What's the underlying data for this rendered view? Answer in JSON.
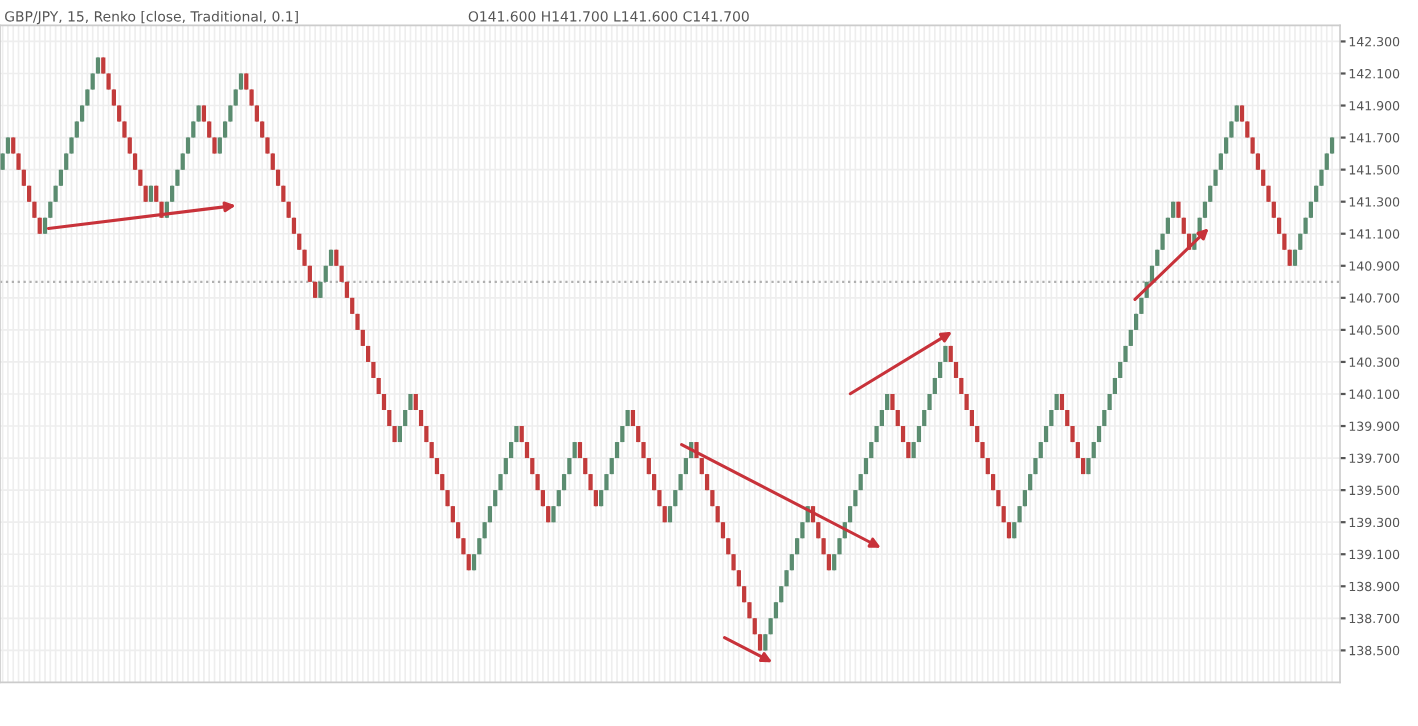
{
  "chart_data": {
    "type": "candlestick",
    "title": "GBP/JPY, 15, Renko [close, Traditional, 0.1]",
    "subtitle": "O141.600 H141.700 L141.600 C141.700",
    "categories": [
      null,
      null,
      null,
      null,
      null,
      null,
      null,
      null,
      null,
      null,
      null,
      null,
      null,
      null,
      null,
      null,
      null,
      null,
      null,
      null,
      null,
      null,
      null,
      null,
      null,
      null,
      null,
      null,
      null,
      null,
      null,
      null,
      null,
      null,
      null,
      null,
      null,
      null,
      null,
      null,
      null,
      null,
      null,
      null,
      null,
      null,
      null,
      null,
      null,
      null,
      null,
      null,
      null,
      null,
      null,
      null,
      null,
      null,
      null,
      null,
      null,
      null,
      null,
      null,
      null,
      null,
      null,
      null,
      null,
      null,
      null,
      null,
      null,
      null,
      null,
      null,
      null,
      null,
      null,
      null,
      null,
      null,
      null,
      null,
      null,
      null,
      null,
      null,
      null,
      null,
      null,
      null,
      null,
      null,
      null,
      null,
      null,
      null,
      null,
      null,
      null,
      null,
      null,
      null,
      null,
      null,
      null,
      null,
      null,
      null,
      null,
      null,
      null,
      null,
      null,
      null,
      null,
      null,
      null,
      null,
      null,
      null,
      null,
      null,
      null,
      null,
      null,
      null,
      null,
      null,
      null,
      null,
      null,
      null,
      null,
      null,
      null,
      null,
      null,
      null,
      null,
      null,
      null,
      null,
      null,
      null,
      null,
      null,
      null,
      null,
      null,
      null,
      null,
      null,
      null,
      null,
      null,
      null,
      null,
      null,
      null,
      null,
      null,
      null,
      null,
      null,
      null,
      null,
      null,
      null,
      null,
      null,
      null,
      null,
      null,
      null,
      null,
      null,
      null,
      null,
      null,
      null,
      null,
      null,
      null,
      null,
      null,
      null,
      null,
      null,
      null,
      null,
      null,
      null,
      null,
      null,
      null,
      null,
      null,
      null,
      null,
      null,
      null,
      null,
      null,
      null,
      null,
      null,
      null,
      null,
      null,
      null,
      null,
      null,
      null,
      null,
      null,
      null,
      null,
      null,
      null,
      null,
      null,
      null,
      null,
      null,
      null,
      null,
      null,
      null,
      null,
      null,
      null,
      null,
      null,
      null,
      null,
      null,
      null,
      null,
      null,
      null,
      null,
      null,
      null,
      null,
      null,
      null,
      null,
      null,
      null,
      null
    ],
    "ohlc": [
      [
        141.5,
        141.6,
        141.5,
        141.6
      ],
      [
        141.6,
        141.7,
        141.6,
        141.7
      ],
      [
        141.7,
        141.7,
        141.6,
        141.6
      ],
      [
        141.6,
        141.6,
        141.5,
        141.5
      ],
      [
        141.5,
        141.5,
        141.4,
        141.4
      ],
      [
        141.4,
        141.4,
        141.3,
        141.3
      ],
      [
        141.3,
        141.3,
        141.2,
        141.2
      ],
      [
        141.2,
        141.2,
        141.1,
        141.1
      ],
      [
        141.1,
        141.2,
        141.1,
        141.2
      ],
      [
        141.2,
        141.3,
        141.2,
        141.3
      ],
      [
        141.3,
        141.4,
        141.3,
        141.4
      ],
      [
        141.4,
        141.5,
        141.4,
        141.5
      ],
      [
        141.5,
        141.6,
        141.5,
        141.6
      ],
      [
        141.6,
        141.7,
        141.6,
        141.7
      ],
      [
        141.7,
        141.8,
        141.7,
        141.8
      ],
      [
        141.8,
        141.9,
        141.8,
        141.9
      ],
      [
        141.9,
        142.0,
        141.9,
        142.0
      ],
      [
        142.0,
        142.1,
        142.0,
        142.1
      ],
      [
        142.1,
        142.2,
        142.1,
        142.2
      ],
      [
        142.2,
        142.2,
        142.1,
        142.1
      ],
      [
        142.1,
        142.1,
        142.0,
        142.0
      ],
      [
        142.0,
        142.0,
        141.9,
        141.9
      ],
      [
        141.9,
        141.9,
        141.8,
        141.8
      ],
      [
        141.8,
        141.8,
        141.7,
        141.7
      ],
      [
        141.7,
        141.7,
        141.6,
        141.6
      ],
      [
        141.6,
        141.6,
        141.5,
        141.5
      ],
      [
        141.5,
        141.5,
        141.4,
        141.4
      ],
      [
        141.4,
        141.4,
        141.3,
        141.3
      ],
      [
        141.3,
        141.4,
        141.3,
        141.4
      ],
      [
        141.4,
        141.4,
        141.3,
        141.3
      ],
      [
        141.3,
        141.3,
        141.2,
        141.2
      ],
      [
        141.2,
        141.3,
        141.2,
        141.3
      ],
      [
        141.3,
        141.4,
        141.3,
        141.4
      ],
      [
        141.4,
        141.5,
        141.4,
        141.5
      ],
      [
        141.5,
        141.6,
        141.5,
        141.6
      ],
      [
        141.6,
        141.7,
        141.6,
        141.7
      ],
      [
        141.7,
        141.8,
        141.7,
        141.8
      ],
      [
        141.8,
        141.9,
        141.8,
        141.9
      ],
      [
        141.9,
        141.9,
        141.8,
        141.8
      ],
      [
        141.8,
        141.8,
        141.7,
        141.7
      ],
      [
        141.7,
        141.7,
        141.6,
        141.6
      ],
      [
        141.6,
        141.7,
        141.6,
        141.7
      ],
      [
        141.7,
        141.8,
        141.7,
        141.8
      ],
      [
        141.8,
        141.9,
        141.8,
        141.9
      ],
      [
        141.9,
        142.0,
        141.9,
        142.0
      ],
      [
        142.0,
        142.1,
        142.0,
        142.1
      ],
      [
        142.1,
        142.1,
        142.0,
        142.0
      ],
      [
        142.0,
        142.0,
        141.9,
        141.9
      ],
      [
        141.9,
        141.9,
        141.8,
        141.8
      ],
      [
        141.8,
        141.8,
        141.7,
        141.7
      ],
      [
        141.7,
        141.7,
        141.6,
        141.6
      ],
      [
        141.6,
        141.6,
        141.5,
        141.5
      ],
      [
        141.5,
        141.5,
        141.4,
        141.4
      ],
      [
        141.4,
        141.4,
        141.3,
        141.3
      ],
      [
        141.3,
        141.3,
        141.2,
        141.2
      ],
      [
        141.2,
        141.2,
        141.1,
        141.1
      ],
      [
        141.1,
        141.1,
        141.0,
        141.0
      ],
      [
        141.0,
        141.0,
        140.9,
        140.9
      ],
      [
        140.9,
        140.9,
        140.8,
        140.8
      ],
      [
        140.8,
        140.8,
        140.7,
        140.7
      ],
      [
        140.7,
        140.8,
        140.7,
        140.8
      ],
      [
        140.8,
        140.9,
        140.8,
        140.9
      ],
      [
        140.9,
        141.0,
        140.9,
        141.0
      ],
      [
        141.0,
        141.0,
        140.9,
        140.9
      ],
      [
        140.9,
        140.9,
        140.8,
        140.8
      ],
      [
        140.8,
        140.8,
        140.7,
        140.7
      ],
      [
        140.7,
        140.7,
        140.6,
        140.6
      ],
      [
        140.6,
        140.6,
        140.5,
        140.5
      ],
      [
        140.5,
        140.5,
        140.4,
        140.4
      ],
      [
        140.4,
        140.4,
        140.3,
        140.3
      ],
      [
        140.3,
        140.3,
        140.2,
        140.2
      ],
      [
        140.2,
        140.2,
        140.1,
        140.1
      ],
      [
        140.1,
        140.1,
        140.0,
        140.0
      ],
      [
        140.0,
        140.0,
        139.9,
        139.9
      ],
      [
        139.9,
        139.9,
        139.8,
        139.8
      ],
      [
        139.8,
        139.9,
        139.8,
        139.9
      ],
      [
        139.9,
        140.0,
        139.9,
        140.0
      ],
      [
        140.0,
        140.1,
        140.0,
        140.1
      ],
      [
        140.1,
        140.1,
        140.0,
        140.0
      ],
      [
        140.0,
        140.0,
        139.9,
        139.9
      ],
      [
        139.9,
        139.9,
        139.8,
        139.8
      ],
      [
        139.8,
        139.8,
        139.7,
        139.7
      ],
      [
        139.7,
        139.7,
        139.6,
        139.6
      ],
      [
        139.6,
        139.6,
        139.5,
        139.5
      ],
      [
        139.5,
        139.5,
        139.4,
        139.4
      ],
      [
        139.4,
        139.4,
        139.3,
        139.3
      ],
      [
        139.3,
        139.3,
        139.2,
        139.2
      ],
      [
        139.2,
        139.2,
        139.1,
        139.1
      ],
      [
        139.1,
        139.1,
        139.0,
        139.0
      ],
      [
        139.0,
        139.1,
        139.0,
        139.1
      ],
      [
        139.1,
        139.2,
        139.1,
        139.2
      ],
      [
        139.2,
        139.3,
        139.2,
        139.3
      ],
      [
        139.3,
        139.4,
        139.3,
        139.4
      ],
      [
        139.4,
        139.5,
        139.4,
        139.5
      ],
      [
        139.5,
        139.6,
        139.5,
        139.6
      ],
      [
        139.6,
        139.7,
        139.6,
        139.7
      ],
      [
        139.7,
        139.8,
        139.7,
        139.8
      ],
      [
        139.8,
        139.9,
        139.8,
        139.9
      ],
      [
        139.9,
        139.9,
        139.8,
        139.8
      ],
      [
        139.8,
        139.8,
        139.7,
        139.7
      ],
      [
        139.7,
        139.7,
        139.6,
        139.6
      ],
      [
        139.6,
        139.6,
        139.5,
        139.5
      ],
      [
        139.5,
        139.5,
        139.4,
        139.4
      ],
      [
        139.4,
        139.4,
        139.3,
        139.3
      ],
      [
        139.3,
        139.4,
        139.3,
        139.4
      ],
      [
        139.4,
        139.5,
        139.4,
        139.5
      ],
      [
        139.5,
        139.6,
        139.5,
        139.6
      ],
      [
        139.6,
        139.7,
        139.6,
        139.7
      ],
      [
        139.7,
        139.8,
        139.7,
        139.8
      ],
      [
        139.8,
        139.8,
        139.7,
        139.7
      ],
      [
        139.7,
        139.7,
        139.6,
        139.6
      ],
      [
        139.6,
        139.6,
        139.5,
        139.5
      ],
      [
        139.5,
        139.5,
        139.4,
        139.4
      ],
      [
        139.4,
        139.5,
        139.4,
        139.5
      ],
      [
        139.5,
        139.6,
        139.5,
        139.6
      ],
      [
        139.6,
        139.7,
        139.6,
        139.7
      ],
      [
        139.7,
        139.8,
        139.7,
        139.8
      ],
      [
        139.8,
        139.9,
        139.8,
        139.9
      ],
      [
        139.9,
        140.0,
        139.9,
        140.0
      ],
      [
        140.0,
        140.0,
        139.9,
        139.9
      ],
      [
        139.9,
        139.9,
        139.8,
        139.8
      ],
      [
        139.8,
        139.8,
        139.7,
        139.7
      ],
      [
        139.7,
        139.7,
        139.6,
        139.6
      ],
      [
        139.6,
        139.6,
        139.5,
        139.5
      ],
      [
        139.5,
        139.5,
        139.4,
        139.4
      ],
      [
        139.4,
        139.4,
        139.3,
        139.3
      ],
      [
        139.3,
        139.4,
        139.3,
        139.4
      ],
      [
        139.4,
        139.5,
        139.4,
        139.5
      ],
      [
        139.5,
        139.6,
        139.5,
        139.6
      ],
      [
        139.6,
        139.7,
        139.6,
        139.7
      ],
      [
        139.7,
        139.8,
        139.7,
        139.8
      ],
      [
        139.8,
        139.8,
        139.7,
        139.7
      ],
      [
        139.7,
        139.7,
        139.6,
        139.6
      ],
      [
        139.6,
        139.6,
        139.5,
        139.5
      ],
      [
        139.5,
        139.5,
        139.4,
        139.4
      ],
      [
        139.4,
        139.4,
        139.3,
        139.3
      ],
      [
        139.3,
        139.3,
        139.2,
        139.2
      ],
      [
        139.2,
        139.2,
        139.1,
        139.1
      ],
      [
        139.1,
        139.1,
        139.0,
        139.0
      ],
      [
        139.0,
        139.0,
        138.9,
        138.9
      ],
      [
        138.9,
        138.9,
        138.8,
        138.8
      ],
      [
        138.8,
        138.8,
        138.7,
        138.7
      ],
      [
        138.7,
        138.7,
        138.6,
        138.6
      ],
      [
        138.6,
        138.6,
        138.5,
        138.5
      ],
      [
        138.5,
        138.6,
        138.5,
        138.6
      ],
      [
        138.6,
        138.7,
        138.6,
        138.7
      ],
      [
        138.7,
        138.8,
        138.7,
        138.8
      ],
      [
        138.8,
        138.9,
        138.8,
        138.9
      ],
      [
        138.9,
        139.0,
        138.9,
        139.0
      ],
      [
        139.0,
        139.1,
        139.0,
        139.1
      ],
      [
        139.1,
        139.2,
        139.1,
        139.2
      ],
      [
        139.2,
        139.3,
        139.2,
        139.3
      ],
      [
        139.3,
        139.4,
        139.3,
        139.4
      ],
      [
        139.4,
        139.4,
        139.3,
        139.3
      ],
      [
        139.3,
        139.3,
        139.2,
        139.2
      ],
      [
        139.2,
        139.2,
        139.1,
        139.1
      ],
      [
        139.1,
        139.1,
        139.0,
        139.0
      ],
      [
        139.0,
        139.1,
        139.0,
        139.1
      ],
      [
        139.1,
        139.2,
        139.1,
        139.2
      ],
      [
        139.2,
        139.3,
        139.2,
        139.3
      ],
      [
        139.3,
        139.4,
        139.3,
        139.4
      ],
      [
        139.4,
        139.5,
        139.4,
        139.5
      ],
      [
        139.5,
        139.6,
        139.5,
        139.6
      ],
      [
        139.6,
        139.7,
        139.6,
        139.7
      ],
      [
        139.7,
        139.8,
        139.7,
        139.8
      ],
      [
        139.8,
        139.9,
        139.8,
        139.9
      ],
      [
        139.9,
        140.0,
        139.9,
        140.0
      ],
      [
        140.0,
        140.1,
        140.0,
        140.1
      ],
      [
        140.1,
        140.1,
        140.0,
        140.0
      ],
      [
        140.0,
        140.0,
        139.9,
        139.9
      ],
      [
        139.9,
        139.9,
        139.8,
        139.8
      ],
      [
        139.8,
        139.8,
        139.7,
        139.7
      ],
      [
        139.7,
        139.8,
        139.7,
        139.8
      ],
      [
        139.8,
        139.9,
        139.8,
        139.9
      ],
      [
        139.9,
        140.0,
        139.9,
        140.0
      ],
      [
        140.0,
        140.1,
        140.0,
        140.1
      ],
      [
        140.1,
        140.2,
        140.1,
        140.2
      ],
      [
        140.2,
        140.3,
        140.2,
        140.3
      ],
      [
        140.3,
        140.4,
        140.3,
        140.4
      ],
      [
        140.4,
        140.4,
        140.3,
        140.3
      ],
      [
        140.3,
        140.3,
        140.2,
        140.2
      ],
      [
        140.2,
        140.2,
        140.1,
        140.1
      ],
      [
        140.1,
        140.1,
        140.0,
        140.0
      ],
      [
        140.0,
        140.0,
        139.9,
        139.9
      ],
      [
        139.9,
        139.9,
        139.8,
        139.8
      ],
      [
        139.8,
        139.8,
        139.7,
        139.7
      ],
      [
        139.7,
        139.7,
        139.6,
        139.6
      ],
      [
        139.6,
        139.6,
        139.5,
        139.5
      ],
      [
        139.5,
        139.5,
        139.4,
        139.4
      ],
      [
        139.4,
        139.4,
        139.3,
        139.3
      ],
      [
        139.3,
        139.3,
        139.2,
        139.2
      ],
      [
        139.2,
        139.3,
        139.2,
        139.3
      ],
      [
        139.3,
        139.4,
        139.3,
        139.4
      ],
      [
        139.4,
        139.5,
        139.4,
        139.5
      ],
      [
        139.5,
        139.6,
        139.5,
        139.6
      ],
      [
        139.6,
        139.7,
        139.6,
        139.7
      ],
      [
        139.7,
        139.8,
        139.7,
        139.8
      ],
      [
        139.8,
        139.9,
        139.8,
        139.9
      ],
      [
        139.9,
        140.0,
        139.9,
        140.0
      ],
      [
        140.0,
        140.1,
        140.0,
        140.1
      ],
      [
        140.1,
        140.1,
        140.0,
        140.0
      ],
      [
        140.0,
        140.0,
        139.9,
        139.9
      ],
      [
        139.9,
        139.9,
        139.8,
        139.8
      ],
      [
        139.8,
        139.8,
        139.7,
        139.7
      ],
      [
        139.7,
        139.7,
        139.6,
        139.6
      ],
      [
        139.6,
        139.7,
        139.6,
        139.7
      ],
      [
        139.7,
        139.8,
        139.7,
        139.8
      ],
      [
        139.8,
        139.9,
        139.8,
        139.9
      ],
      [
        139.9,
        140.0,
        139.9,
        140.0
      ],
      [
        140.0,
        140.1,
        140.0,
        140.1
      ],
      [
        140.1,
        140.2,
        140.1,
        140.2
      ],
      [
        140.2,
        140.3,
        140.2,
        140.3
      ],
      [
        140.3,
        140.4,
        140.3,
        140.4
      ],
      [
        140.4,
        140.5,
        140.4,
        140.5
      ],
      [
        140.5,
        140.6,
        140.5,
        140.6
      ],
      [
        140.6,
        140.7,
        140.6,
        140.7
      ],
      [
        140.7,
        140.8,
        140.7,
        140.8
      ],
      [
        140.8,
        140.9,
        140.8,
        140.9
      ],
      [
        140.9,
        141.0,
        140.9,
        141.0
      ],
      [
        141.0,
        141.1,
        141.0,
        141.1
      ],
      [
        141.1,
        141.2,
        141.1,
        141.2
      ],
      [
        141.2,
        141.3,
        141.2,
        141.3
      ],
      [
        141.3,
        141.3,
        141.2,
        141.2
      ],
      [
        141.2,
        141.2,
        141.1,
        141.1
      ],
      [
        141.1,
        141.1,
        141.0,
        141.0
      ],
      [
        141.0,
        141.1,
        141.0,
        141.1
      ],
      [
        141.1,
        141.2,
        141.1,
        141.2
      ],
      [
        141.2,
        141.3,
        141.2,
        141.3
      ],
      [
        141.3,
        141.4,
        141.3,
        141.4
      ],
      [
        141.4,
        141.5,
        141.4,
        141.5
      ],
      [
        141.5,
        141.6,
        141.5,
        141.6
      ],
      [
        141.6,
        141.7,
        141.6,
        141.7
      ],
      [
        141.7,
        141.8,
        141.7,
        141.8
      ],
      [
        141.8,
        141.9,
        141.8,
        141.9
      ],
      [
        141.9,
        141.9,
        141.8,
        141.8
      ],
      [
        141.8,
        141.8,
        141.7,
        141.7
      ],
      [
        141.7,
        141.7,
        141.6,
        141.6
      ],
      [
        141.6,
        141.6,
        141.5,
        141.5
      ],
      [
        141.5,
        141.5,
        141.4,
        141.4
      ],
      [
        141.4,
        141.4,
        141.3,
        141.3
      ],
      [
        141.3,
        141.3,
        141.2,
        141.2
      ],
      [
        141.2,
        141.2,
        141.1,
        141.1
      ],
      [
        141.1,
        141.1,
        141.0,
        141.0
      ],
      [
        141.0,
        141.0,
        140.9,
        140.9
      ],
      [
        140.9,
        141.0,
        140.9,
        141.0
      ],
      [
        141.0,
        141.1,
        141.0,
        141.1
      ],
      [
        141.1,
        141.2,
        141.1,
        141.2
      ],
      [
        141.2,
        141.3,
        141.2,
        141.3
      ],
      [
        141.3,
        141.4,
        141.3,
        141.4
      ],
      [
        141.4,
        141.5,
        141.4,
        141.5
      ],
      [
        141.5,
        141.6,
        141.5,
        141.6
      ],
      [
        141.6,
        141.7,
        141.6,
        141.7
      ]
    ],
    "colors": [
      "#5b8c70",
      "#5b8c70",
      "#c23b3b",
      "#c23b3b",
      "#c23b3b",
      "#c23b3b",
      "#c23b3b",
      "#c23b3b",
      "#5b8c70",
      "#5b8c70",
      "#5b8c70",
      "#5b8c70",
      "#5b8c70",
      "#5b8c70",
      "#5b8c70",
      "#5b8c70",
      "#5b8c70",
      "#5b8c70",
      "#5b8c70",
      "#c23b3b",
      "#c23b3b",
      "#c23b3b",
      "#c23b3b",
      "#c23b3b",
      "#c23b3b",
      "#c23b3b",
      "#c23b3b",
      "#c23b3b",
      "#5b8c70",
      "#c23b3b",
      "#c23b3b",
      "#5b8c70",
      "#5b8c70",
      "#5b8c70",
      "#5b8c70",
      "#5b8c70",
      "#5b8c70",
      "#5b8c70",
      "#c23b3b",
      "#c23b3b",
      "#c23b3b",
      "#5b8c70",
      "#5b8c70",
      "#5b8c70",
      "#5b8c70",
      "#5b8c70",
      "#c23b3b",
      "#c23b3b",
      "#c23b3b",
      "#c23b3b",
      "#c23b3b",
      "#c23b3b",
      "#c23b3b",
      "#c23b3b",
      "#c23b3b",
      "#c23b3b",
      "#c23b3b",
      "#c23b3b",
      "#c23b3b",
      "#c23b3b",
      "#5b8c70",
      "#5b8c70",
      "#5b8c70",
      "#c23b3b",
      "#c23b3b",
      "#c23b3b",
      "#c23b3b",
      "#c23b3b",
      "#c23b3b",
      "#c23b3b",
      "#c23b3b",
      "#c23b3b",
      "#c23b3b",
      "#c23b3b",
      "#c23b3b",
      "#5b8c70",
      "#5b8c70",
      "#5b8c70",
      "#c23b3b",
      "#c23b3b",
      "#c23b3b",
      "#c23b3b",
      "#c23b3b",
      "#c23b3b",
      "#c23b3b",
      "#c23b3b",
      "#c23b3b",
      "#c23b3b",
      "#c23b3b",
      "#5b8c70",
      "#5b8c70",
      "#5b8c70",
      "#5b8c70",
      "#5b8c70",
      "#5b8c70",
      "#5b8c70",
      "#5b8c70",
      "#5b8c70",
      "#c23b3b",
      "#c23b3b",
      "#c23b3b",
      "#c23b3b",
      "#c23b3b",
      "#c23b3b",
      "#5b8c70",
      "#5b8c70",
      "#5b8c70",
      "#5b8c70",
      "#5b8c70",
      "#c23b3b",
      "#c23b3b",
      "#c23b3b",
      "#c23b3b",
      "#5b8c70",
      "#5b8c70",
      "#5b8c70",
      "#5b8c70",
      "#5b8c70",
      "#5b8c70",
      "#c23b3b",
      "#c23b3b",
      "#c23b3b",
      "#c23b3b",
      "#c23b3b",
      "#c23b3b",
      "#c23b3b",
      "#5b8c70",
      "#5b8c70",
      "#5b8c70",
      "#5b8c70",
      "#5b8c70",
      "#c23b3b",
      "#c23b3b",
      "#c23b3b",
      "#c23b3b",
      "#c23b3b",
      "#c23b3b",
      "#c23b3b",
      "#c23b3b",
      "#c23b3b",
      "#c23b3b",
      "#c23b3b",
      "#c23b3b",
      "#c23b3b",
      "#5b8c70",
      "#5b8c70",
      "#5b8c70",
      "#5b8c70",
      "#5b8c70",
      "#5b8c70",
      "#5b8c70",
      "#5b8c70",
      "#5b8c70",
      "#c23b3b",
      "#c23b3b",
      "#c23b3b",
      "#c23b3b",
      "#5b8c70",
      "#5b8c70",
      "#5b8c70",
      "#5b8c70",
      "#5b8c70",
      "#5b8c70",
      "#5b8c70",
      "#5b8c70",
      "#5b8c70",
      "#5b8c70",
      "#5b8c70",
      "#c23b3b",
      "#c23b3b",
      "#c23b3b",
      "#c23b3b",
      "#5b8c70",
      "#5b8c70",
      "#5b8c70",
      "#5b8c70",
      "#5b8c70",
      "#5b8c70",
      "#5b8c70",
      "#c23b3b",
      "#c23b3b",
      "#c23b3b",
      "#c23b3b",
      "#c23b3b",
      "#c23b3b",
      "#c23b3b",
      "#c23b3b",
      "#c23b3b",
      "#c23b3b",
      "#c23b3b",
      "#c23b3b",
      "#5b8c70",
      "#5b8c70",
      "#5b8c70",
      "#5b8c70",
      "#5b8c70",
      "#5b8c70",
      "#5b8c70",
      "#5b8c70",
      "#5b8c70",
      "#c23b3b",
      "#c23b3b",
      "#c23b3b",
      "#c23b3b",
      "#c23b3b",
      "#5b8c70",
      "#5b8c70",
      "#5b8c70",
      "#5b8c70",
      "#5b8c70",
      "#5b8c70",
      "#5b8c70",
      "#5b8c70",
      "#5b8c70",
      "#5b8c70",
      "#5b8c70",
      "#5b8c70",
      "#5b8c70",
      "#5b8c70",
      "#5b8c70",
      "#5b8c70",
      "#5b8c70",
      "#c23b3b",
      "#c23b3b",
      "#c23b3b",
      "#5b8c70",
      "#5b8c70",
      "#5b8c70",
      "#5b8c70",
      "#5b8c70",
      "#5b8c70",
      "#5b8c70",
      "#5b8c70",
      "#5b8c70",
      "#c23b3b",
      "#c23b3b",
      "#c23b3b",
      "#c23b3b",
      "#c23b3b",
      "#c23b3b",
      "#c23b3b",
      "#c23b3b",
      "#c23b3b",
      "#c23b3b",
      "#5b8c70",
      "#5b8c70",
      "#5b8c70",
      "#5b8c70",
      "#5b8c70",
      "#5b8c70",
      "#5b8c70",
      "#5b8c70"
    ],
    "ylim": [
      138.3,
      142.4
    ],
    "yticks": [
      {
        "value": 138.5,
        "label": "138.500"
      },
      {
        "value": 138.7,
        "label": "138.700"
      },
      {
        "value": 138.9,
        "label": "138.900"
      },
      {
        "value": 139.1,
        "label": "139.100"
      },
      {
        "value": 139.3,
        "label": "139.300"
      },
      {
        "value": 139.5,
        "label": "139.500"
      },
      {
        "value": 139.7,
        "label": "139.700"
      },
      {
        "value": 139.9,
        "label": "139.900"
      },
      {
        "value": 140.1,
        "label": "140.100"
      },
      {
        "value": 140.3,
        "label": "140.300"
      },
      {
        "value": 140.5,
        "label": "140.500"
      },
      {
        "value": 140.7,
        "label": "140.700"
      },
      {
        "value": 140.9,
        "label": "140.900"
      },
      {
        "value": 141.1,
        "label": "141.100"
      },
      {
        "value": 141.3,
        "label": "141.300"
      },
      {
        "value": 141.5,
        "label": "141.500"
      },
      {
        "value": 141.7,
        "label": "141.700"
      },
      {
        "value": 141.9,
        "label": "141.900"
      },
      {
        "value": 142.1,
        "label": "142.100"
      },
      {
        "value": 142.3,
        "label": "142.300"
      }
    ],
    "ref_lines": [
      {
        "axis": "y",
        "value": 140.8,
        "color": "#b0b0b0",
        "line_style": "dotted"
      }
    ],
    "grid": true
  }
}
